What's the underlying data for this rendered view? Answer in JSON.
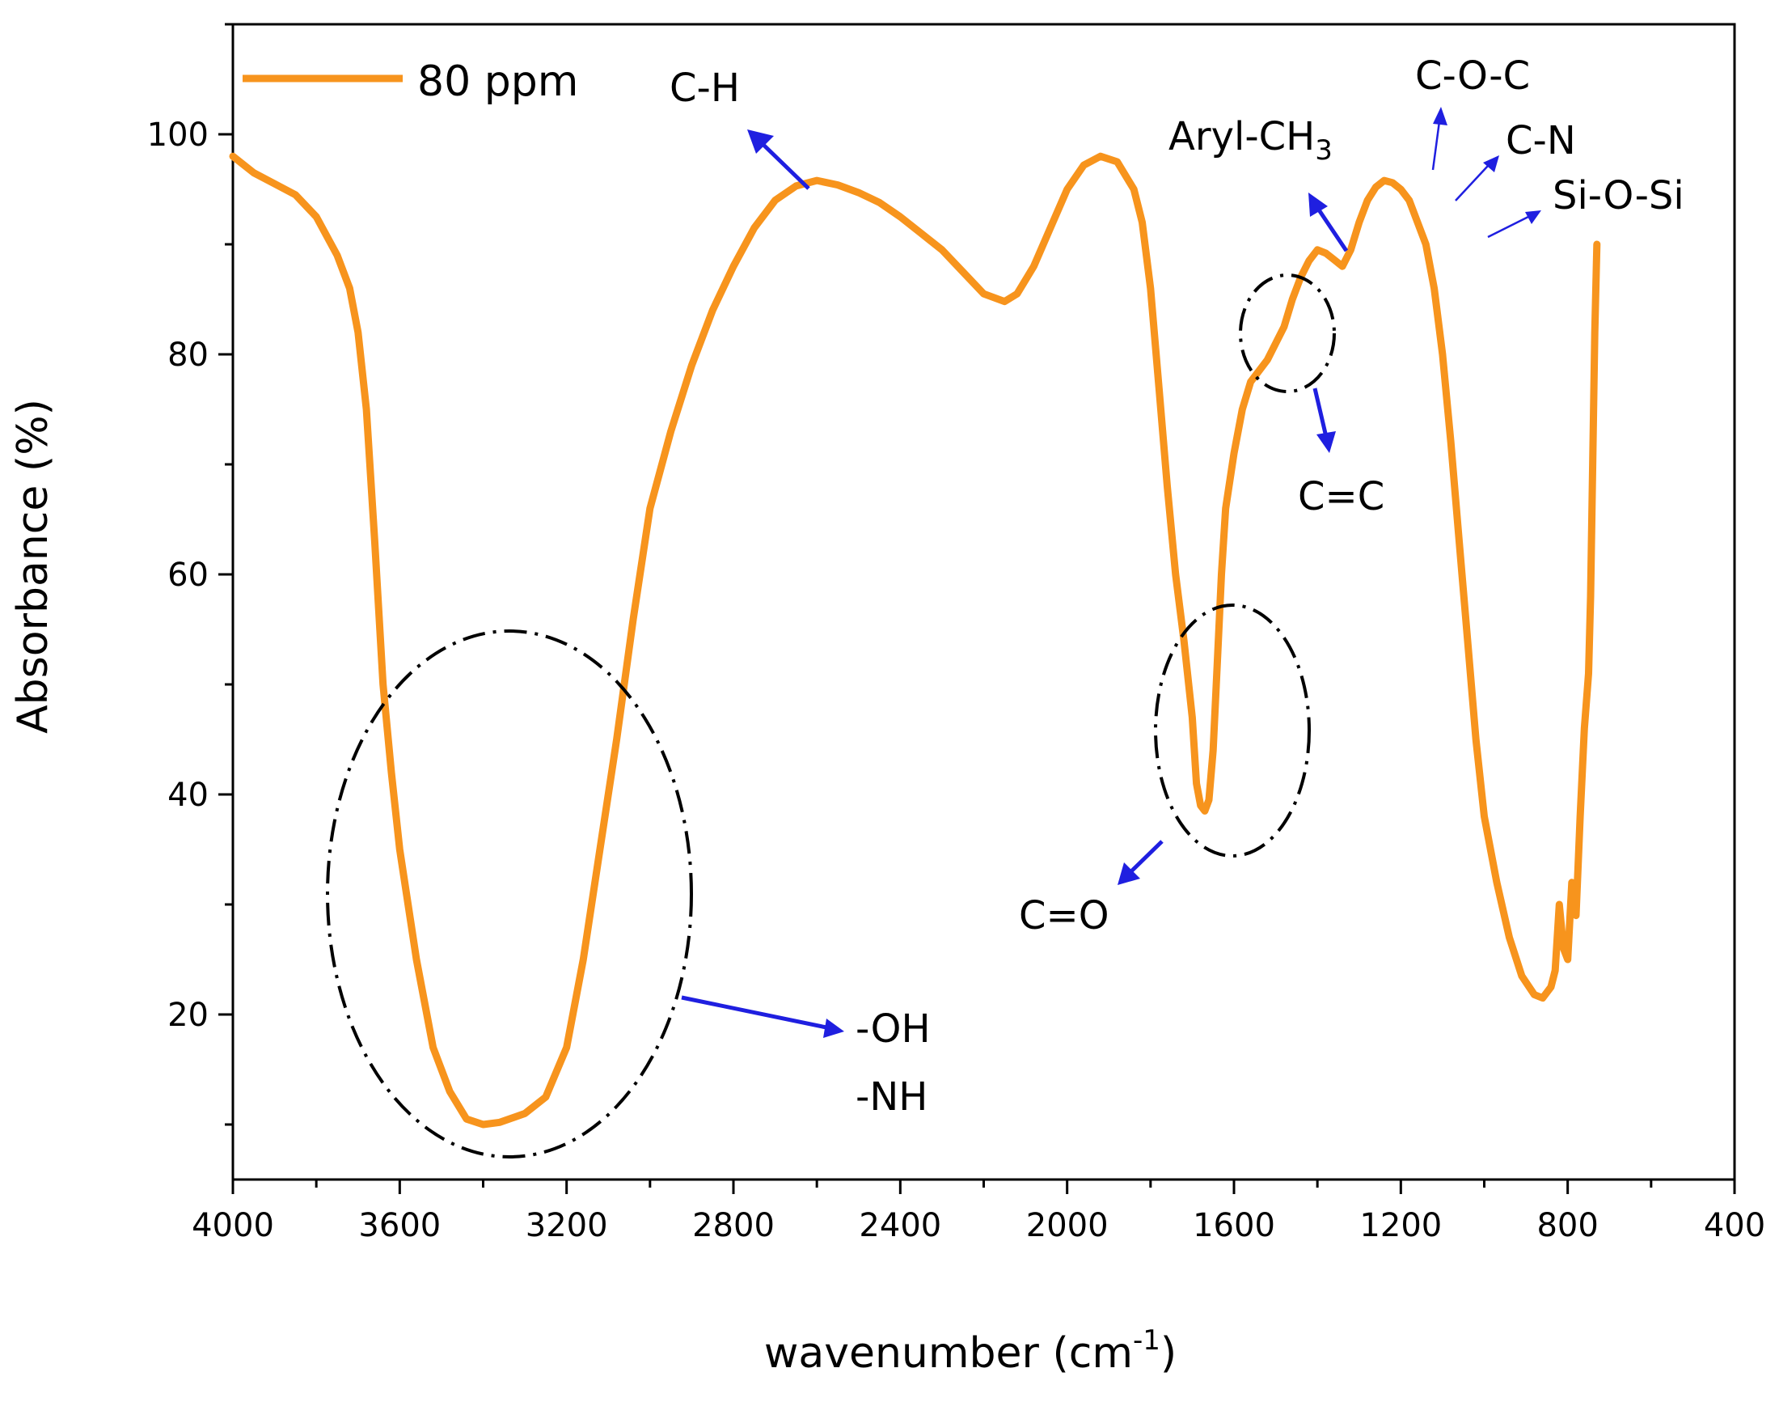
{
  "chart_data": {
    "type": "line",
    "title": "",
    "xlabel": "wavenumber",
    "xlabel_unit": "(cm",
    "xlabel_unit_sup": "-1",
    "xlabel_unit_close": ")",
    "ylabel": "Absorbance (%)",
    "xlim": [
      4000,
      400
    ],
    "ylim": [
      5,
      110
    ],
    "x_reversed": true,
    "grid": false,
    "legend_position": "top-left",
    "x_ticks": [
      4000,
      3600,
      3200,
      2800,
      2400,
      2000,
      1600,
      1200,
      800,
      400
    ],
    "y_ticks": [
      20,
      40,
      60,
      80,
      100
    ],
    "series": [
      {
        "name": "80 ppm",
        "color": "#F7941D",
        "points": [
          [
            4000,
            98
          ],
          [
            3950,
            96.5
          ],
          [
            3900,
            95.5
          ],
          [
            3850,
            94.5
          ],
          [
            3800,
            92.5
          ],
          [
            3750,
            89
          ],
          [
            3720,
            86
          ],
          [
            3700,
            82
          ],
          [
            3680,
            75
          ],
          [
            3660,
            63
          ],
          [
            3640,
            50
          ],
          [
            3620,
            42
          ],
          [
            3600,
            35
          ],
          [
            3560,
            25
          ],
          [
            3520,
            17
          ],
          [
            3480,
            13
          ],
          [
            3440,
            10.5
          ],
          [
            3400,
            10
          ],
          [
            3360,
            10.2
          ],
          [
            3300,
            11
          ],
          [
            3250,
            12.5
          ],
          [
            3200,
            17
          ],
          [
            3160,
            25
          ],
          [
            3120,
            35
          ],
          [
            3080,
            45
          ],
          [
            3040,
            56
          ],
          [
            3000,
            66
          ],
          [
            2950,
            73
          ],
          [
            2900,
            79
          ],
          [
            2850,
            84
          ],
          [
            2800,
            88
          ],
          [
            2750,
            91.5
          ],
          [
            2700,
            94
          ],
          [
            2650,
            95.3
          ],
          [
            2600,
            95.8
          ],
          [
            2550,
            95.4
          ],
          [
            2500,
            94.7
          ],
          [
            2450,
            93.8
          ],
          [
            2400,
            92.5
          ],
          [
            2350,
            91
          ],
          [
            2300,
            89.5
          ],
          [
            2250,
            87.5
          ],
          [
            2200,
            85.5
          ],
          [
            2150,
            84.8
          ],
          [
            2120,
            85.5
          ],
          [
            2080,
            88
          ],
          [
            2040,
            91.5
          ],
          [
            2000,
            95
          ],
          [
            1960,
            97.2
          ],
          [
            1920,
            98
          ],
          [
            1880,
            97.5
          ],
          [
            1840,
            95
          ],
          [
            1820,
            92
          ],
          [
            1800,
            86
          ],
          [
            1780,
            77
          ],
          [
            1760,
            68
          ],
          [
            1740,
            60
          ],
          [
            1720,
            54
          ],
          [
            1700,
            47
          ],
          [
            1690,
            41
          ],
          [
            1680,
            39
          ],
          [
            1670,
            38.5
          ],
          [
            1660,
            39.5
          ],
          [
            1650,
            44
          ],
          [
            1640,
            52
          ],
          [
            1630,
            60
          ],
          [
            1620,
            66
          ],
          [
            1600,
            71
          ],
          [
            1580,
            75
          ],
          [
            1560,
            77.5
          ],
          [
            1540,
            78.5
          ],
          [
            1520,
            79.5
          ],
          [
            1500,
            81
          ],
          [
            1480,
            82.5
          ],
          [
            1460,
            85
          ],
          [
            1440,
            87
          ],
          [
            1420,
            88.5
          ],
          [
            1400,
            89.5
          ],
          [
            1380,
            89.2
          ],
          [
            1360,
            88.6
          ],
          [
            1340,
            88
          ],
          [
            1320,
            89.5
          ],
          [
            1300,
            92
          ],
          [
            1280,
            94
          ],
          [
            1260,
            95.2
          ],
          [
            1240,
            95.8
          ],
          [
            1220,
            95.6
          ],
          [
            1200,
            95
          ],
          [
            1180,
            94
          ],
          [
            1160,
            92
          ],
          [
            1140,
            90
          ],
          [
            1120,
            86
          ],
          [
            1100,
            80
          ],
          [
            1080,
            72
          ],
          [
            1060,
            63
          ],
          [
            1040,
            54
          ],
          [
            1020,
            45
          ],
          [
            1000,
            38
          ],
          [
            970,
            32
          ],
          [
            940,
            27
          ],
          [
            910,
            23.5
          ],
          [
            880,
            21.8
          ],
          [
            860,
            21.5
          ],
          [
            840,
            22.5
          ],
          [
            830,
            24
          ],
          [
            820,
            30
          ],
          [
            810,
            26
          ],
          [
            800,
            25
          ],
          [
            790,
            32
          ],
          [
            780,
            29
          ],
          [
            770,
            38
          ],
          [
            760,
            46
          ],
          [
            750,
            51
          ],
          [
            745,
            58
          ],
          [
            740,
            70
          ],
          [
            735,
            82
          ],
          [
            730,
            90
          ]
        ]
      }
    ],
    "annotations": [
      {
        "text": "C-H"
      },
      {
        "text": "Aryl-CH",
        "sub": "3"
      },
      {
        "text": "C-O-C"
      },
      {
        "text": "C-N"
      },
      {
        "text": "Si-O-Si"
      },
      {
        "text": "C=C"
      },
      {
        "text": "C=O"
      },
      {
        "text": "-OH"
      },
      {
        "text": "-NH"
      }
    ]
  }
}
